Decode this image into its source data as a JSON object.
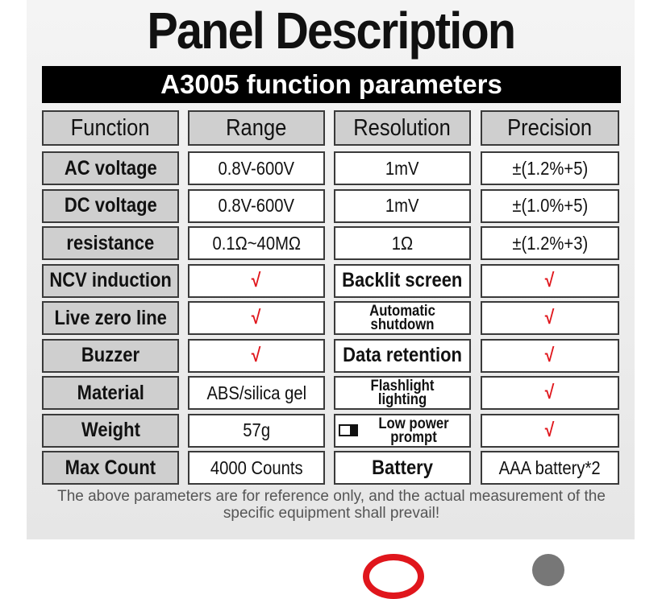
{
  "title": "Panel Description",
  "subtitle": "A3005 function parameters",
  "headers": [
    "Function",
    "Range",
    "Resolution",
    "Precision"
  ],
  "rows": [
    {
      "function": "AC voltage",
      "range": "0.8V-600V",
      "resolution": "1mV",
      "precision": "±(1.2%+5)"
    },
    {
      "function": "DC voltage",
      "range": "0.8V-600V",
      "resolution": "1mV",
      "precision": "±(1.0%+5)"
    },
    {
      "function": "resistance",
      "range": "0.1Ω~40MΩ",
      "resolution": "1Ω",
      "precision": "±(1.2%+3)"
    },
    {
      "function": "NCV induction",
      "range": "√",
      "resolution": "Backlit screen",
      "precision": "√"
    },
    {
      "function": "Live zero line",
      "range": "√",
      "resolution": "Automatic shutdown",
      "precision": "√"
    },
    {
      "function": "Buzzer",
      "range": "√",
      "resolution": "Data retention",
      "precision": "√"
    },
    {
      "function": "Material",
      "range": "ABS/silica gel",
      "resolution": "Flashlight lighting",
      "precision": "√"
    },
    {
      "function": "Weight",
      "range": "57g",
      "resolution": "Low power prompt",
      "precision": "√",
      "resolution_icon": "low-battery-icon"
    },
    {
      "function": "Max Count",
      "range": "4000 Counts",
      "resolution": "Battery",
      "precision": "AAA battery*2"
    }
  ],
  "footer": "The above parameters are for reference only, and the actual measurement of the specific equipment shall prevail!",
  "colors": {
    "check": "#e0161c",
    "header_bg": "#cfcfcf",
    "bar_bg": "#000000"
  }
}
